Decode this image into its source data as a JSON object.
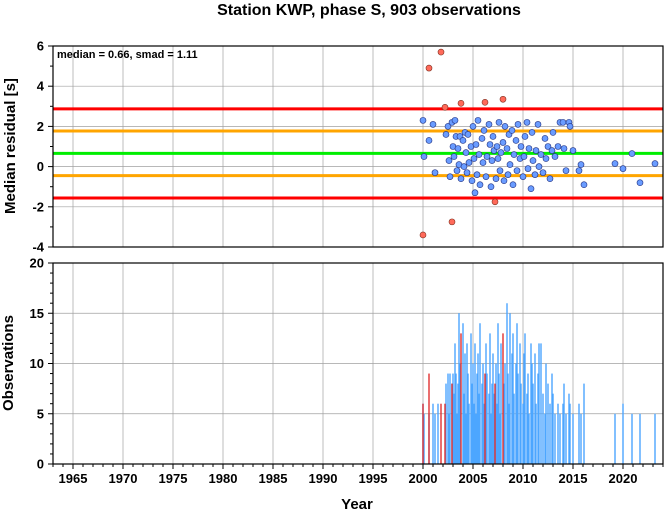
{
  "chart_data": [
    {
      "type": "scatter",
      "title": "Station KWP, phase S, 903 observations",
      "ylabel": "Median residual [s]",
      "annotation": "median = 0.66, smad = 1.11",
      "xlim": [
        1963,
        2024
      ],
      "ylim": [
        -4,
        6
      ],
      "yticks": [
        -4,
        -2,
        0,
        2,
        4,
        6
      ],
      "grid": true,
      "reference_lines": [
        {
          "y": 2.87,
          "color": "#ff0000"
        },
        {
          "y": 1.77,
          "color": "#ffa500"
        },
        {
          "y": 0.66,
          "color": "#00ee00"
        },
        {
          "y": -0.45,
          "color": "#ffa500"
        },
        {
          "y": -1.56,
          "color": "#ff0000"
        }
      ],
      "outlier_color": "#ff6a5a",
      "inlier_color": "#6a9cff",
      "outliers": [
        {
          "x": 2000.0,
          "y": -3.4
        },
        {
          "x": 2000.6,
          "y": 4.9
        },
        {
          "x": 2001.8,
          "y": 5.7
        },
        {
          "x": 2002.2,
          "y": 2.95
        },
        {
          "x": 2002.9,
          "y": -2.75
        },
        {
          "x": 2003.8,
          "y": 3.15
        },
        {
          "x": 2006.2,
          "y": 3.2
        },
        {
          "x": 2007.2,
          "y": -1.75
        },
        {
          "x": 2008.0,
          "y": 3.35
        }
      ],
      "points": [
        {
          "x": 2000.0,
          "y": 2.3
        },
        {
          "x": 2000.1,
          "y": 0.5
        },
        {
          "x": 2000.6,
          "y": 1.3
        },
        {
          "x": 2001.0,
          "y": 2.1
        },
        {
          "x": 2001.2,
          "y": -0.3
        },
        {
          "x": 2002.3,
          "y": 1.6
        },
        {
          "x": 2002.5,
          "y": 2.0
        },
        {
          "x": 2002.6,
          "y": 0.3
        },
        {
          "x": 2002.7,
          "y": -0.5
        },
        {
          "x": 2002.9,
          "y": 2.2
        },
        {
          "x": 2003.0,
          "y": 1.0
        },
        {
          "x": 2003.1,
          "y": 0.5
        },
        {
          "x": 2003.2,
          "y": 2.3
        },
        {
          "x": 2003.3,
          "y": 1.5
        },
        {
          "x": 2003.4,
          "y": -0.2
        },
        {
          "x": 2003.5,
          "y": 0.9
        },
        {
          "x": 2003.6,
          "y": 0.1
        },
        {
          "x": 2003.7,
          "y": 1.5
        },
        {
          "x": 2003.8,
          "y": -0.6
        },
        {
          "x": 2004.0,
          "y": 1.3
        },
        {
          "x": 2004.1,
          "y": 0.0
        },
        {
          "x": 2004.2,
          "y": 1.7
        },
        {
          "x": 2004.3,
          "y": 0.7
        },
        {
          "x": 2004.4,
          "y": -0.3
        },
        {
          "x": 2004.5,
          "y": 1.6
        },
        {
          "x": 2004.6,
          "y": 0.2
        },
        {
          "x": 2004.8,
          "y": 1.0
        },
        {
          "x": 2004.9,
          "y": -0.7
        },
        {
          "x": 2005.0,
          "y": 2.0
        },
        {
          "x": 2005.1,
          "y": 0.4
        },
        {
          "x": 2005.2,
          "y": -1.3
        },
        {
          "x": 2005.3,
          "y": 1.1
        },
        {
          "x": 2005.4,
          "y": -0.4
        },
        {
          "x": 2005.5,
          "y": 2.3
        },
        {
          "x": 2005.6,
          "y": 0.6
        },
        {
          "x": 2005.7,
          "y": -0.9
        },
        {
          "x": 2005.9,
          "y": 1.4
        },
        {
          "x": 2006.0,
          "y": 0.2
        },
        {
          "x": 2006.1,
          "y": 1.8
        },
        {
          "x": 2006.3,
          "y": -0.5
        },
        {
          "x": 2006.4,
          "y": 0.5
        },
        {
          "x": 2006.6,
          "y": 2.1
        },
        {
          "x": 2006.7,
          "y": 1.1
        },
        {
          "x": 2006.8,
          "y": -1.0
        },
        {
          "x": 2006.9,
          "y": 0.3
        },
        {
          "x": 2007.0,
          "y": 1.5
        },
        {
          "x": 2007.1,
          "y": 0.8
        },
        {
          "x": 2007.3,
          "y": -0.6
        },
        {
          "x": 2007.4,
          "y": 1.0
        },
        {
          "x": 2007.5,
          "y": 0.4
        },
        {
          "x": 2007.6,
          "y": 2.2
        },
        {
          "x": 2007.7,
          "y": -0.2
        },
        {
          "x": 2007.8,
          "y": 0.7
        },
        {
          "x": 2008.0,
          "y": 1.2
        },
        {
          "x": 2008.1,
          "y": -0.7
        },
        {
          "x": 2008.2,
          "y": 2.0
        },
        {
          "x": 2008.4,
          "y": 0.9
        },
        {
          "x": 2008.5,
          "y": -0.4
        },
        {
          "x": 2008.6,
          "y": 1.6
        },
        {
          "x": 2008.7,
          "y": 0.1
        },
        {
          "x": 2008.9,
          "y": 1.8
        },
        {
          "x": 2009.0,
          "y": -0.9
        },
        {
          "x": 2009.1,
          "y": 0.6
        },
        {
          "x": 2009.3,
          "y": 1.3
        },
        {
          "x": 2009.4,
          "y": -0.2
        },
        {
          "x": 2009.5,
          "y": 2.1
        },
        {
          "x": 2009.7,
          "y": 0.4
        },
        {
          "x": 2009.8,
          "y": 1.0
        },
        {
          "x": 2010.0,
          "y": -0.5
        },
        {
          "x": 2010.1,
          "y": 0.5
        },
        {
          "x": 2010.2,
          "y": 1.5
        },
        {
          "x": 2010.4,
          "y": 2.2
        },
        {
          "x": 2010.5,
          "y": -0.1
        },
        {
          "x": 2010.6,
          "y": 0.9
        },
        {
          "x": 2010.8,
          "y": -1.1
        },
        {
          "x": 2010.9,
          "y": 1.7
        },
        {
          "x": 2011.0,
          "y": 0.3
        },
        {
          "x": 2011.2,
          "y": -0.4
        },
        {
          "x": 2011.3,
          "y": 0.8
        },
        {
          "x": 2011.5,
          "y": 2.1
        },
        {
          "x": 2011.6,
          "y": 0.0
        },
        {
          "x": 2011.8,
          "y": 0.6
        },
        {
          "x": 2012.0,
          "y": -0.3
        },
        {
          "x": 2012.2,
          "y": 1.4
        },
        {
          "x": 2012.3,
          "y": 0.4
        },
        {
          "x": 2012.5,
          "y": 1.0
        },
        {
          "x": 2012.7,
          "y": -0.6
        },
        {
          "x": 2012.9,
          "y": 0.8
        },
        {
          "x": 2013.0,
          "y": 1.7
        },
        {
          "x": 2013.2,
          "y": 0.5
        },
        {
          "x": 2013.5,
          "y": 1.0
        },
        {
          "x": 2013.7,
          "y": 2.2
        },
        {
          "x": 2014.0,
          "y": 2.2
        },
        {
          "x": 2014.1,
          "y": 0.9
        },
        {
          "x": 2014.3,
          "y": -0.2
        },
        {
          "x": 2014.6,
          "y": 2.2
        },
        {
          "x": 2014.7,
          "y": 2.0
        },
        {
          "x": 2015.0,
          "y": 0.8
        },
        {
          "x": 2015.6,
          "y": -0.2
        },
        {
          "x": 2015.8,
          "y": 0.1
        },
        {
          "x": 2016.1,
          "y": -0.9
        },
        {
          "x": 2019.2,
          "y": 0.15
        },
        {
          "x": 2020.0,
          "y": -0.1
        },
        {
          "x": 2020.9,
          "y": 0.65
        },
        {
          "x": 2021.7,
          "y": -0.8
        },
        {
          "x": 2023.2,
          "y": 0.15
        }
      ]
    },
    {
      "type": "bar",
      "ylabel": "Observations",
      "xlabel": "Year",
      "xlim": [
        1963,
        2024
      ],
      "ylim": [
        0,
        20
      ],
      "yticks": [
        0,
        5,
        10,
        15,
        20
      ],
      "xticks": [
        1965,
        1970,
        1975,
        1980,
        1985,
        1990,
        1995,
        2000,
        2005,
        2010,
        2015,
        2020
      ],
      "grid": true,
      "series": [
        {
          "color": "#e03030",
          "x": [
            2000.0,
            2000.6,
            2001.8,
            2002.2,
            2002.9,
            2003.8,
            2006.2,
            2007.2,
            2008.0
          ],
          "values": [
            6,
            9,
            6,
            6,
            8,
            13,
            9,
            8,
            13
          ]
        },
        {
          "color": "#4da6ff",
          "x": [
            2000.0,
            2000.1,
            2000.6,
            2001.0,
            2001.2,
            2001.5,
            2002.3,
            2002.5,
            2002.6,
            2002.7,
            2002.9,
            2003.0,
            2003.1,
            2003.2,
            2003.3,
            2003.4,
            2003.5,
            2003.6,
            2003.7,
            2004.0,
            2004.1,
            2004.2,
            2004.3,
            2004.4,
            2004.5,
            2004.6,
            2004.8,
            2004.9,
            2005.0,
            2005.1,
            2005.2,
            2005.3,
            2005.4,
            2005.5,
            2005.6,
            2005.7,
            2005.9,
            2006.0,
            2006.1,
            2006.3,
            2006.4,
            2006.6,
            2006.7,
            2006.8,
            2006.9,
            2007.0,
            2007.1,
            2007.3,
            2007.4,
            2007.5,
            2007.6,
            2007.7,
            2007.8,
            2008.1,
            2008.2,
            2008.4,
            2008.5,
            2008.6,
            2008.7,
            2008.9,
            2009.0,
            2009.1,
            2009.3,
            2009.4,
            2009.5,
            2009.7,
            2009.8,
            2010.0,
            2010.1,
            2010.2,
            2010.4,
            2010.5,
            2010.6,
            2010.8,
            2010.9,
            2011.0,
            2011.2,
            2011.3,
            2011.5,
            2011.6,
            2011.8,
            2012.0,
            2012.2,
            2012.3,
            2012.5,
            2012.7,
            2012.9,
            2013.0,
            2013.2,
            2013.5,
            2013.7,
            2014.0,
            2014.1,
            2014.3,
            2014.6,
            2014.7,
            2015.0,
            2015.6,
            2015.8,
            2016.1,
            2019.2,
            2020.0,
            2020.9,
            2021.7,
            2023.2
          ],
          "values": [
            6,
            5,
            5,
            6,
            5,
            6,
            8,
            9,
            5,
            9,
            8,
            9,
            7,
            12,
            9,
            5,
            8,
            15,
            10,
            14,
            7,
            11,
            5,
            12,
            9,
            6,
            13,
            8,
            10,
            6,
            12,
            5,
            9,
            11,
            7,
            14,
            8,
            10,
            6,
            12,
            9,
            7,
            13,
            5,
            8,
            11,
            7,
            10,
            6,
            14,
            9,
            5,
            12,
            8,
            10,
            16,
            9,
            6,
            15,
            11,
            13,
            7,
            10,
            14,
            9,
            12,
            8,
            6,
            11,
            13,
            7,
            9,
            5,
            12,
            10,
            8,
            11,
            6,
            9,
            12,
            12,
            7,
            5,
            10,
            8,
            6,
            9,
            7,
            5,
            6,
            5,
            6,
            8,
            5,
            7,
            6,
            5,
            6,
            5,
            8,
            5,
            6,
            5,
            5,
            5
          ]
        }
      ]
    }
  ]
}
